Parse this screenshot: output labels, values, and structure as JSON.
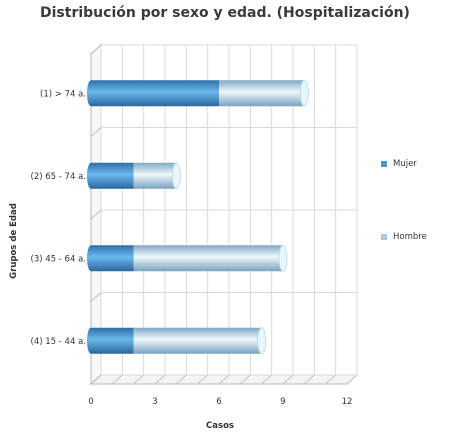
{
  "chart_data": {
    "type": "bar",
    "orientation": "horizontal",
    "stacked": true,
    "title": "Distribución por sexo y edad. (Hospitalización)",
    "xlabel": "Casos",
    "ylabel": "Grupos de Edad",
    "categories": [
      "(1) > 74 a.",
      "(2) 65 - 74 a.",
      "(3) 45 - 64 a.",
      "(4) 15 - 44 a."
    ],
    "series": [
      {
        "name": "Mujer",
        "values": [
          6,
          2,
          2,
          2
        ],
        "color": "#4f96d4"
      },
      {
        "name": "Hombre",
        "values": [
          4,
          2,
          7,
          6
        ],
        "color": "#a9cde6"
      }
    ],
    "xlim": [
      0,
      12
    ],
    "xticks": [
      0,
      3,
      6,
      9,
      12
    ],
    "grid": true,
    "legend_position": "right"
  }
}
